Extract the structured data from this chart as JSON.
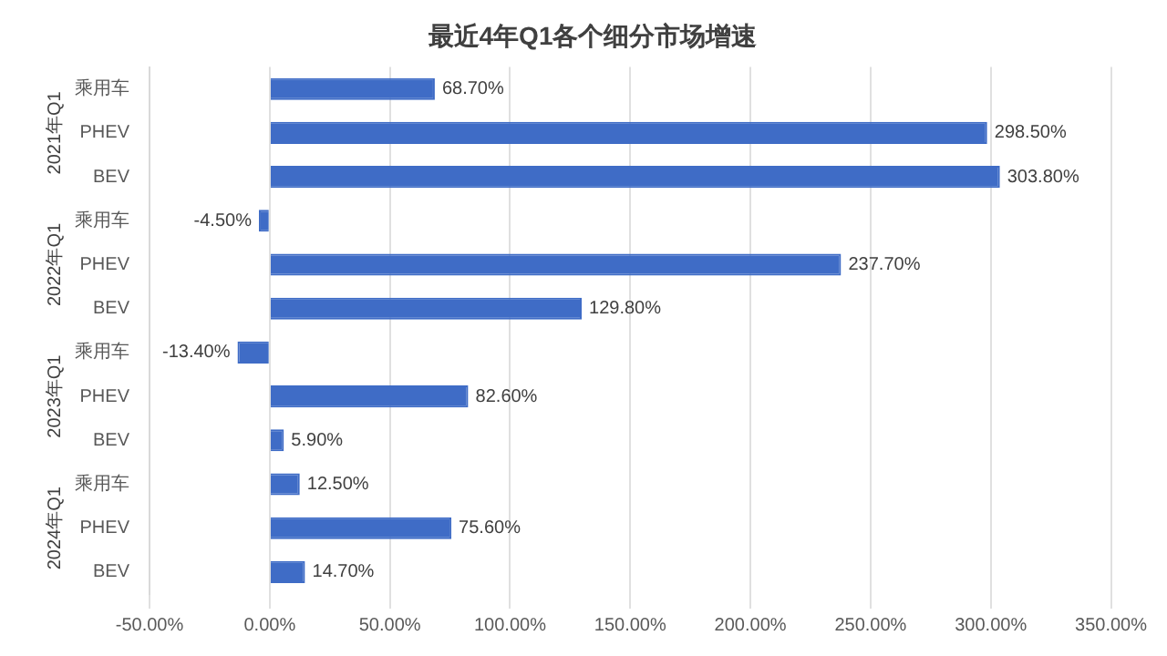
{
  "chart_data": {
    "type": "bar",
    "orientation": "horizontal",
    "title": "最近4年Q1各个细分市场增速",
    "categories": [
      "乘用车",
      "PHEV",
      "BEV",
      "乘用车",
      "PHEV",
      "BEV",
      "乘用车",
      "PHEV",
      "BEV",
      "乘用车",
      "PHEV",
      "BEV"
    ],
    "values": [
      68.7,
      298.5,
      303.8,
      -4.5,
      237.7,
      129.8,
      -13.4,
      82.6,
      5.9,
      12.5,
      75.6,
      14.7
    ],
    "value_labels": [
      "68.70%",
      "298.50%",
      "303.80%",
      "-4.50%",
      "237.70%",
      "129.80%",
      "-13.40%",
      "82.60%",
      "5.90%",
      "12.50%",
      "75.60%",
      "14.70%"
    ],
    "color": "#3f6cc6",
    "annotations": [
      "2021年Q1",
      "2022年Q1",
      "2023年Q1",
      "2024年Q1"
    ],
    "xlim": [
      -50,
      350
    ],
    "xticks": [
      {
        "value": -50,
        "label": "-50.00%"
      },
      {
        "value": 0,
        "label": "0.00%"
      },
      {
        "value": 50,
        "label": "50.00%"
      },
      {
        "value": 100,
        "label": "100.00%"
      },
      {
        "value": 150,
        "label": "150.00%"
      },
      {
        "value": 200,
        "label": "200.00%"
      },
      {
        "value": 250,
        "label": "250.00%"
      },
      {
        "value": 300,
        "label": "300.00%"
      },
      {
        "value": 350,
        "label": "350.00%"
      }
    ],
    "grid": "x",
    "legend": false
  }
}
